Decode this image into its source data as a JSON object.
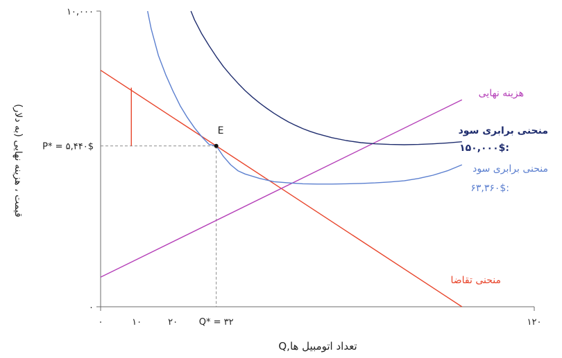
{
  "chart_data": {
    "type": "line",
    "xlabel": "Q,تعداد اتومبیل ها",
    "ylabel": "قیمت ، هزینه نهایی (به دلار)",
    "xlim": [
      0,
      120
    ],
    "ylim": [
      0,
      10000
    ],
    "x_tick_labels": [
      {
        "x": 0,
        "label": "۰"
      },
      {
        "x": 10,
        "label": "۱۰"
      },
      {
        "x": 20,
        "label": "۲۰"
      },
      {
        "x": 32,
        "label": "Q* = ۳۲"
      },
      {
        "x": 120,
        "label": "۱۲۰"
      }
    ],
    "y_tick_labels": [
      {
        "y": 0,
        "label": "۰"
      },
      {
        "y": 5440,
        "label": "P* = ۵,۴۴۰$"
      },
      {
        "y": 10000,
        "label": "۱۰,۰۰۰"
      }
    ],
    "point_label": "E",
    "equilibrium": {
      "x": 32,
      "y": 5440
    },
    "demand_gap_marker": {
      "x": 8.5,
      "y_from": 5440,
      "y_to": 7410
    },
    "series": [
      {
        "name": "منحنی تقاضا",
        "color": "#e8442a",
        "x": [
          0,
          100
        ],
        "y": [
          8000,
          0
        ]
      },
      {
        "name": "هزینه نهایی",
        "color": "#b540b8",
        "x": [
          0,
          100
        ],
        "y": [
          1000,
          7000
        ]
      },
      {
        "name": "منحنی برابری سود",
        "value_label": "۶۳,۳۶۰$:",
        "color": "#5b7fcf",
        "x": [
          13,
          14,
          16,
          18,
          20,
          22,
          24,
          26,
          28,
          30,
          32,
          34,
          36,
          38,
          40,
          44,
          48,
          52,
          56,
          60,
          64,
          68,
          72,
          76,
          80,
          84,
          88,
          92,
          96,
          100
        ],
        "y": [
          10000,
          9400,
          8500,
          7850,
          7300,
          6800,
          6400,
          6050,
          5750,
          5490,
          5440,
          5080,
          4800,
          4600,
          4490,
          4340,
          4230,
          4190,
          4160,
          4150,
          4150,
          4160,
          4170,
          4190,
          4220,
          4260,
          4340,
          4450,
          4600,
          4800
        ]
      },
      {
        "name": "منحنی برابری سود",
        "value_label": "۱۵۰,۰۰۰$:",
        "color": "#1f2d6e",
        "x": [
          25,
          26,
          28,
          30,
          32,
          34,
          36,
          38,
          40,
          42,
          44,
          46,
          48,
          50,
          52,
          54,
          56,
          58,
          60,
          64,
          68,
          72,
          76,
          80,
          84,
          88,
          92,
          96,
          100
        ],
        "y": [
          10000,
          9700,
          9230,
          8830,
          8460,
          8120,
          7830,
          7560,
          7310,
          7090,
          6890,
          6710,
          6540,
          6390,
          6250,
          6130,
          6020,
          5930,
          5850,
          5720,
          5620,
          5550,
          5510,
          5490,
          5480,
          5490,
          5510,
          5540,
          5580
        ]
      }
    ]
  }
}
